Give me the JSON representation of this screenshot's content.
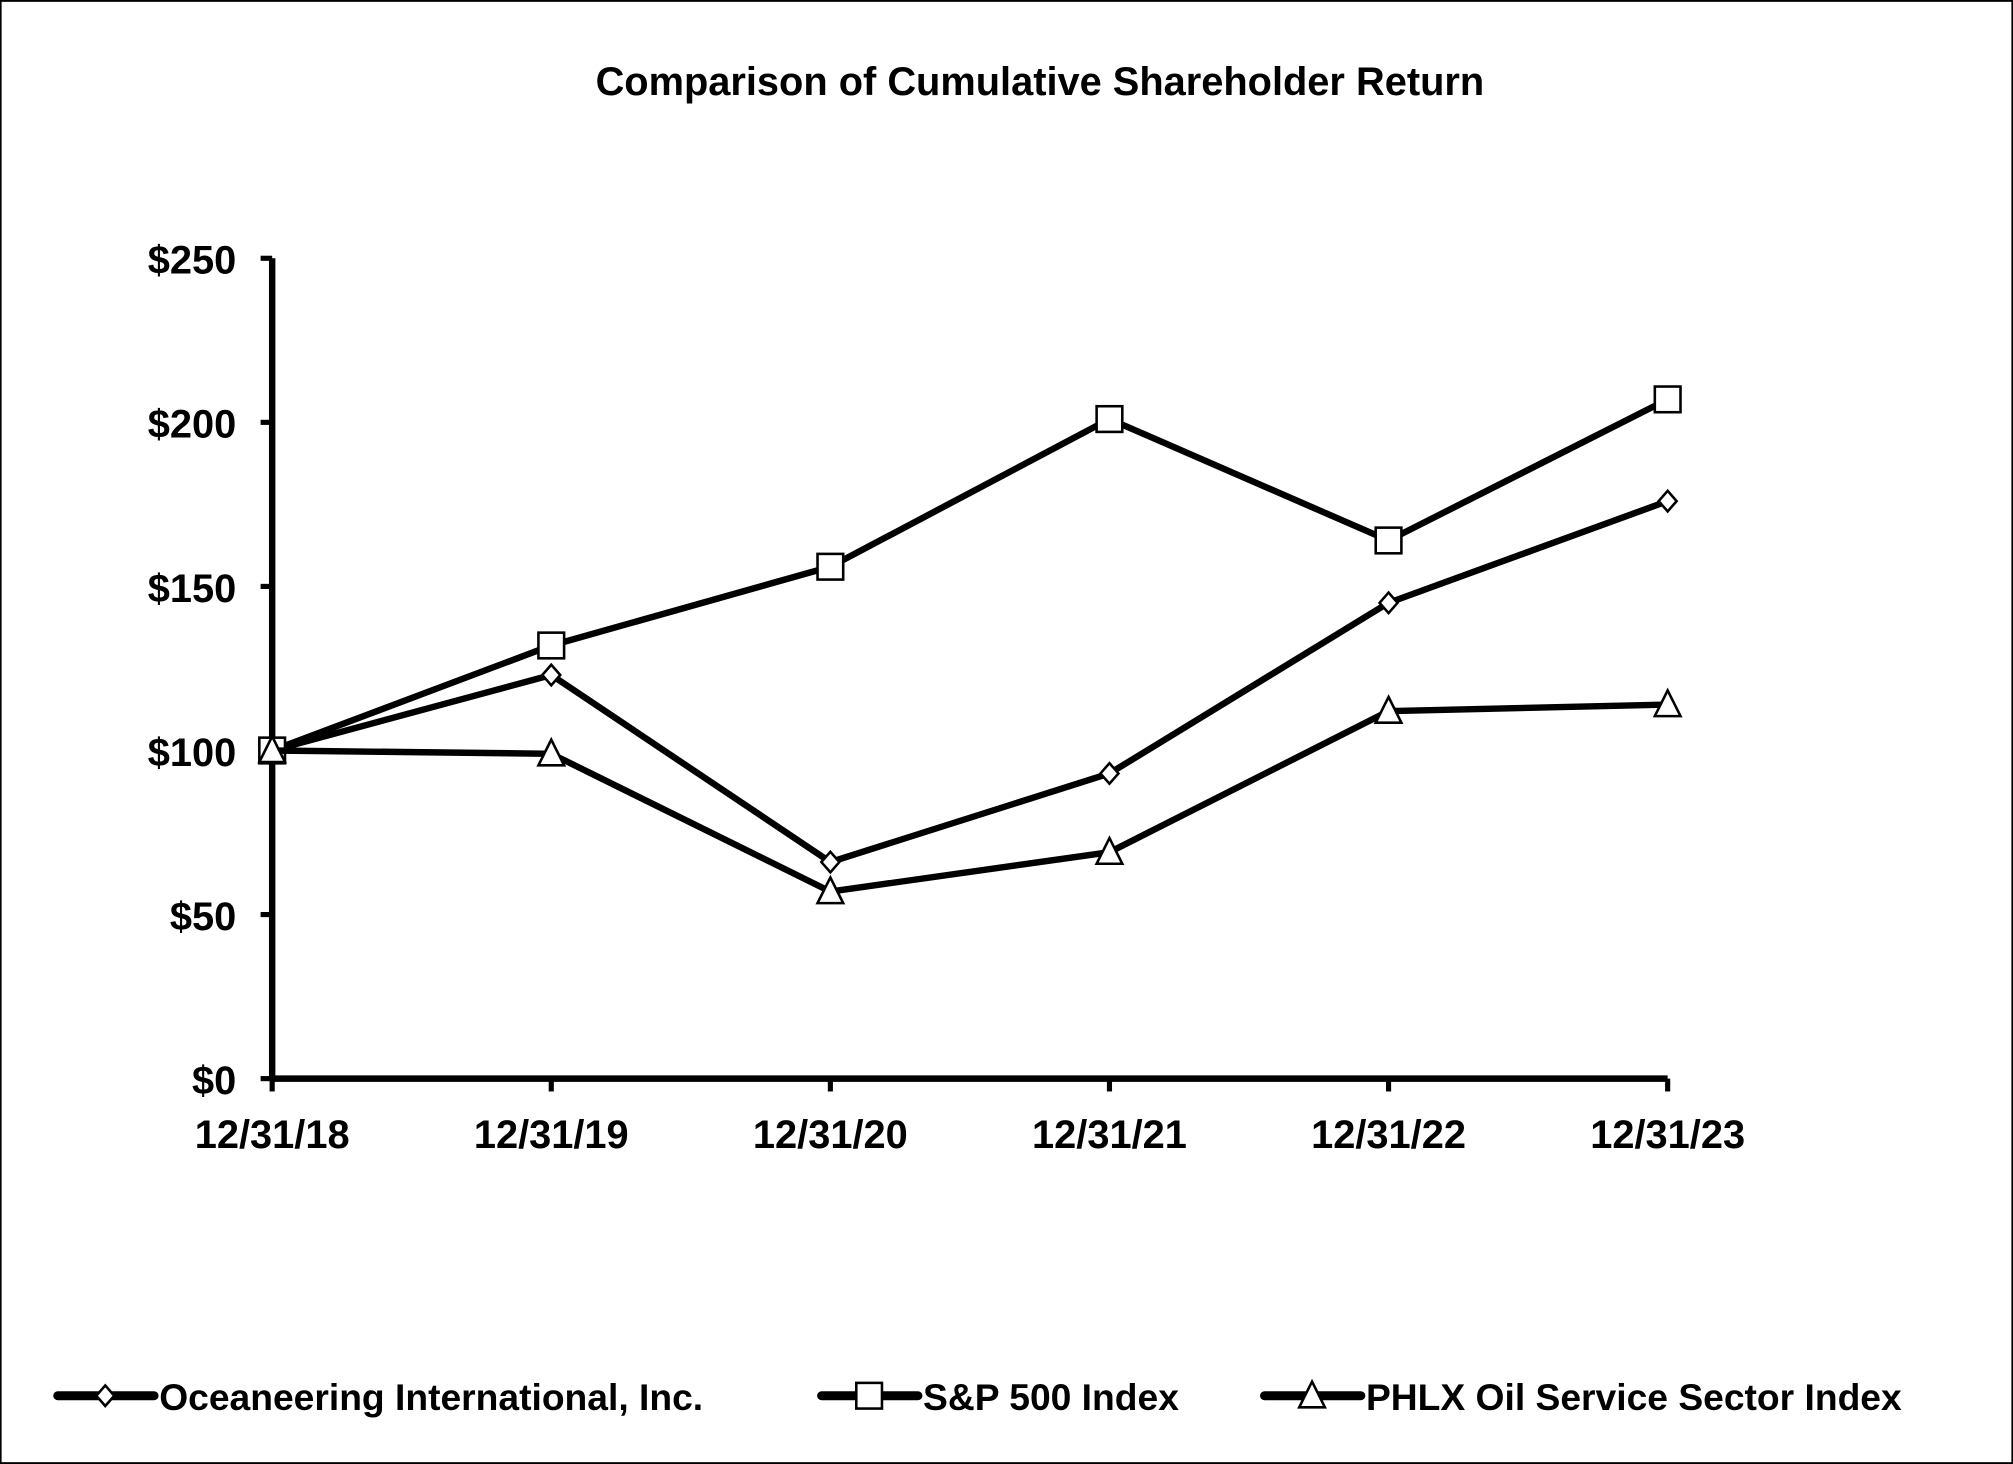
{
  "chart_data": {
    "type": "line",
    "title": "Comparison of Cumulative Shareholder Return",
    "xlabel": "",
    "ylabel": "",
    "categories": [
      "12/31/18",
      "12/31/19",
      "12/31/20",
      "12/31/21",
      "12/31/22",
      "12/31/23"
    ],
    "y_ticks": [
      "$0",
      "$50",
      "$100",
      "$150",
      "$200",
      "$250"
    ],
    "ylim": [
      0,
      250
    ],
    "grid": false,
    "legend": "bottom",
    "series": [
      {
        "name": "Oceaneering International, Inc.",
        "marker": "diamond",
        "values": [
          100,
          123,
          66,
          93,
          145,
          176
        ]
      },
      {
        "name": "S&P 500 Index",
        "marker": "square",
        "values": [
          100,
          132,
          156,
          201,
          164,
          207
        ]
      },
      {
        "name": "PHLX Oil Service Sector Index",
        "marker": "triangle",
        "values": [
          100,
          99,
          57,
          69,
          112,
          114
        ]
      }
    ],
    "colors": {
      "line": "#000000",
      "marker_fill": "#ffffff"
    }
  }
}
